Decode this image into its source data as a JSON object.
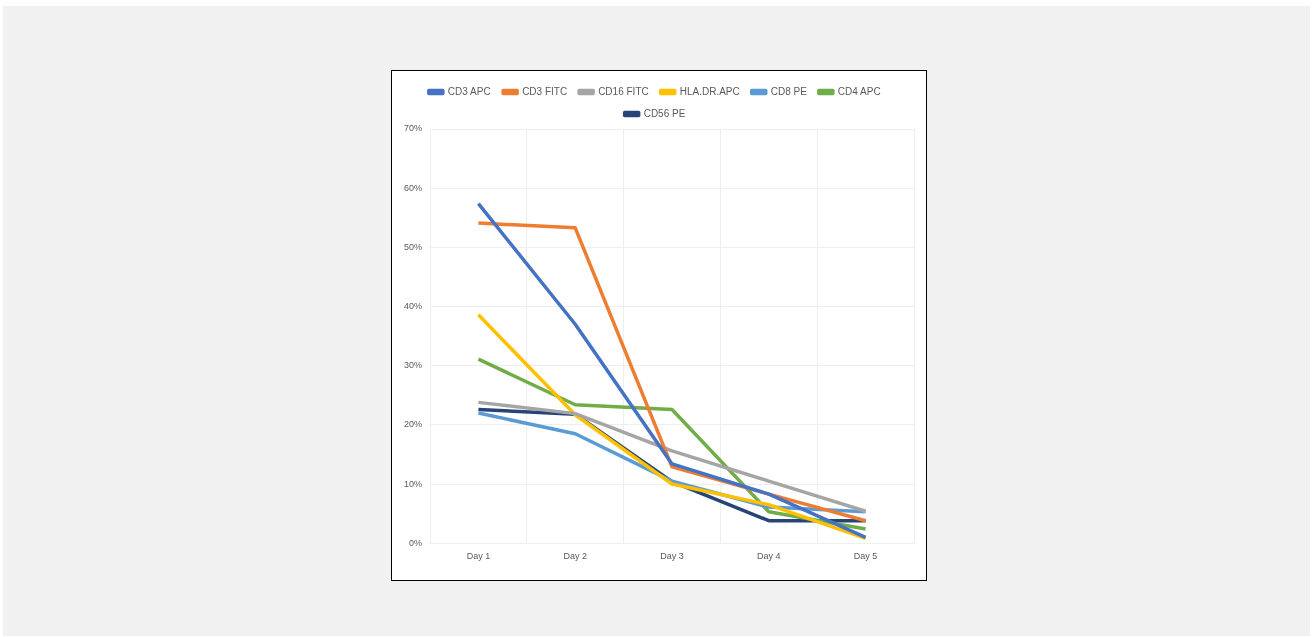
{
  "chart_data": {
    "type": "line",
    "categories": [
      "Day 1",
      "Day 2",
      "Day 3",
      "Day 4",
      "Day 5"
    ],
    "series": [
      {
        "name": "CD3 APC",
        "color": "#4472c4",
        "values": [
          57.4,
          37.0,
          13.4,
          8.3,
          1.0
        ]
      },
      {
        "name": "CD3 FITC",
        "color": "#ed7d31",
        "values": [
          54.1,
          53.3,
          12.9,
          8.3,
          3.8
        ]
      },
      {
        "name": "CD16 FITC",
        "color": "#a5a5a5",
        "values": [
          23.8,
          21.9,
          15.6,
          10.5,
          5.4
        ]
      },
      {
        "name": "HLA.DR.APC",
        "color": "#ffc000",
        "values": [
          38.6,
          21.7,
          10.0,
          6.5,
          0.8
        ]
      },
      {
        "name": "CD8 PE",
        "color": "#5b9bd5",
        "values": [
          22.0,
          18.5,
          10.5,
          6.1,
          5.3
        ]
      },
      {
        "name": "CD4 APC",
        "color": "#70ad47",
        "values": [
          31.1,
          23.4,
          22.6,
          5.3,
          2.4
        ]
      },
      {
        "name": "CD56 PE",
        "color": "#264478",
        "values": [
          22.6,
          21.8,
          10.4,
          3.8,
          3.8
        ]
      }
    ],
    "ylim": [
      0,
      70
    ],
    "yticks": [
      {
        "value": 0,
        "label": "0%"
      },
      {
        "value": 10,
        "label": "10%"
      },
      {
        "value": 20,
        "label": "20%"
      },
      {
        "value": 30,
        "label": "30%"
      },
      {
        "value": 40,
        "label": "40%"
      },
      {
        "value": 50,
        "label": "50%"
      },
      {
        "value": 60,
        "label": "60%"
      },
      {
        "value": 70,
        "label": "70%"
      }
    ],
    "grid": true,
    "legend": "top",
    "marker": "none",
    "line_style": "solid"
  }
}
